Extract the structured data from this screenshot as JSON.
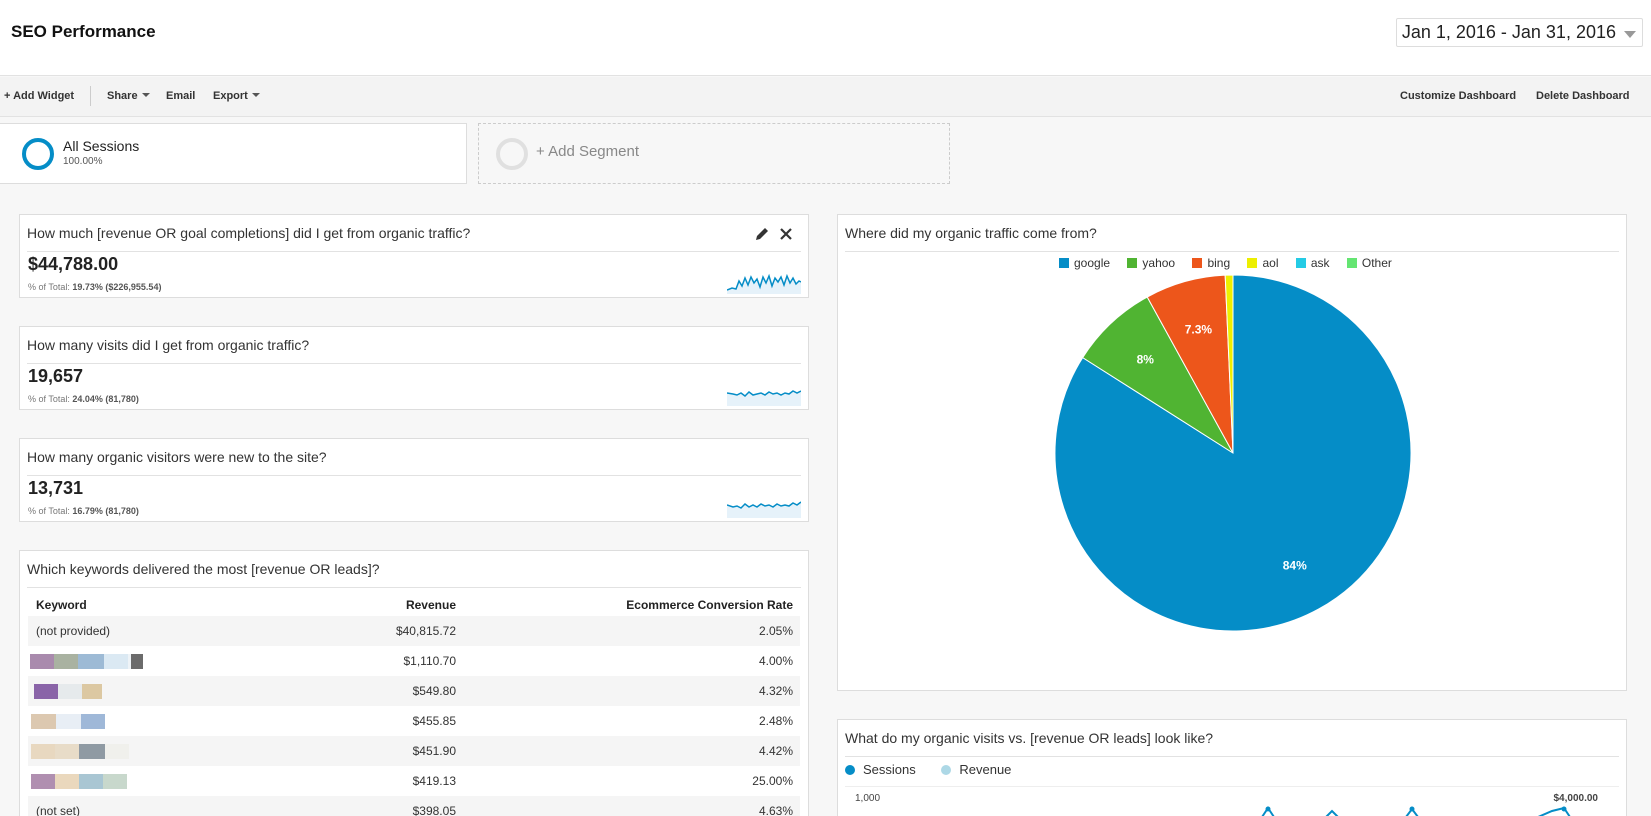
{
  "header": {
    "title": "SEO Performance",
    "date_range": "Jan 1, 2016 - Jan 31, 2016"
  },
  "toolbar": {
    "add_widget": "+ Add Widget",
    "share": "Share",
    "email": "Email",
    "export": "Export",
    "customize": "Customize Dashboard",
    "delete": "Delete Dashboard"
  },
  "segments": {
    "all": {
      "name": "All Sessions",
      "pct": "100.00%"
    },
    "add": "+ Add Segment"
  },
  "colors": {
    "google": "#058dc7",
    "yahoo": "#50b432",
    "bing": "#ed561b",
    "aol": "#edef00",
    "ask": "#24cbe5",
    "other": "#64e572",
    "revenue": "#add8e6"
  },
  "widgets": {
    "revenue": {
      "title": "How much [revenue OR goal completions] did I get from organic traffic?",
      "metric": "$44,788.00",
      "sub_label": "% of Total:",
      "sub_value": "19.73% ($226,955.54)"
    },
    "visits": {
      "title": "How many visits did I get from organic traffic?",
      "metric": "19,657",
      "sub_label": "% of Total:",
      "sub_value": "24.04% (81,780)"
    },
    "new_visitors": {
      "title": "How many organic visitors were new to the site?",
      "metric": "13,731",
      "sub_label": "% of Total:",
      "sub_value": "16.79% (81,780)"
    },
    "keywords": {
      "title": "Which keywords delivered the most [revenue OR leads]?",
      "headers": {
        "keyword": "Keyword",
        "revenue": "Revenue",
        "rate": "Ecommerce Conversion Rate"
      },
      "rows": [
        {
          "keyword": "(not provided)",
          "revenue": "$40,815.72",
          "rate": "2.05%"
        },
        {
          "keyword": "",
          "revenue": "$1,110.70",
          "rate": "4.00%"
        },
        {
          "keyword": "",
          "revenue": "$549.80",
          "rate": "4.32%"
        },
        {
          "keyword": "",
          "revenue": "$455.85",
          "rate": "2.48%"
        },
        {
          "keyword": "",
          "revenue": "$451.90",
          "rate": "4.42%"
        },
        {
          "keyword": "",
          "revenue": "$419.13",
          "rate": "25.00%"
        },
        {
          "keyword": "(not set)",
          "revenue": "$398.05",
          "rate": "4.63%"
        }
      ]
    },
    "sources": {
      "title": "Where did my organic traffic come from?",
      "legend": [
        "google",
        "yahoo",
        "bing",
        "aol",
        "ask",
        "Other"
      ]
    },
    "visits_vs_revenue": {
      "title": "What do my organic visits vs. [revenue OR leads] look like?",
      "legend": [
        "Sessions",
        "Revenue"
      ],
      "left_tick": "1,000",
      "right_tick": "$4,000.00"
    }
  },
  "chart_data": {
    "type": "pie",
    "categories": [
      "google",
      "yahoo",
      "bing",
      "aol",
      "ask",
      "Other"
    ],
    "values": [
      84,
      8,
      7.3,
      0.7,
      0,
      0
    ],
    "data_labels": [
      "84%",
      "8%",
      "7.3%",
      "",
      "",
      ""
    ],
    "legend_position": "top"
  }
}
